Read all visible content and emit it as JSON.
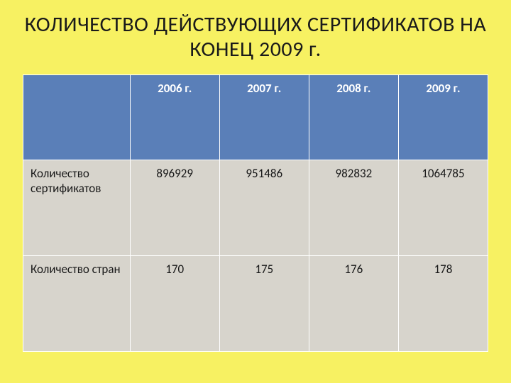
{
  "title": "КОЛИЧЕСТВО ДЕЙСТВУЮЩИХ СЕРТИФИКАТОВ НА КОНЕЦ 2009 г.",
  "table": {
    "type": "table",
    "header_bg": "#5a7fb8",
    "header_fg": "#ffffff",
    "cell_bg": "#d7d4cc",
    "cell_fg": "#1a1a1a",
    "border_color": "#ffffff",
    "columns": [
      "",
      "2006 г.",
      "2007 г.",
      "2008 г.",
      "2009 г."
    ],
    "rows": [
      {
        "label": "Количество сертификатов",
        "values": [
          "896929",
          "951486",
          "982832",
          "1064785"
        ]
      },
      {
        "label": "Количество стран",
        "values": [
          "170",
          "175",
          "176",
          "178"
        ]
      }
    ],
    "title_fontsize": 30,
    "header_fontsize": 17,
    "cell_fontsize": 17
  },
  "background_color": "#f7f162"
}
